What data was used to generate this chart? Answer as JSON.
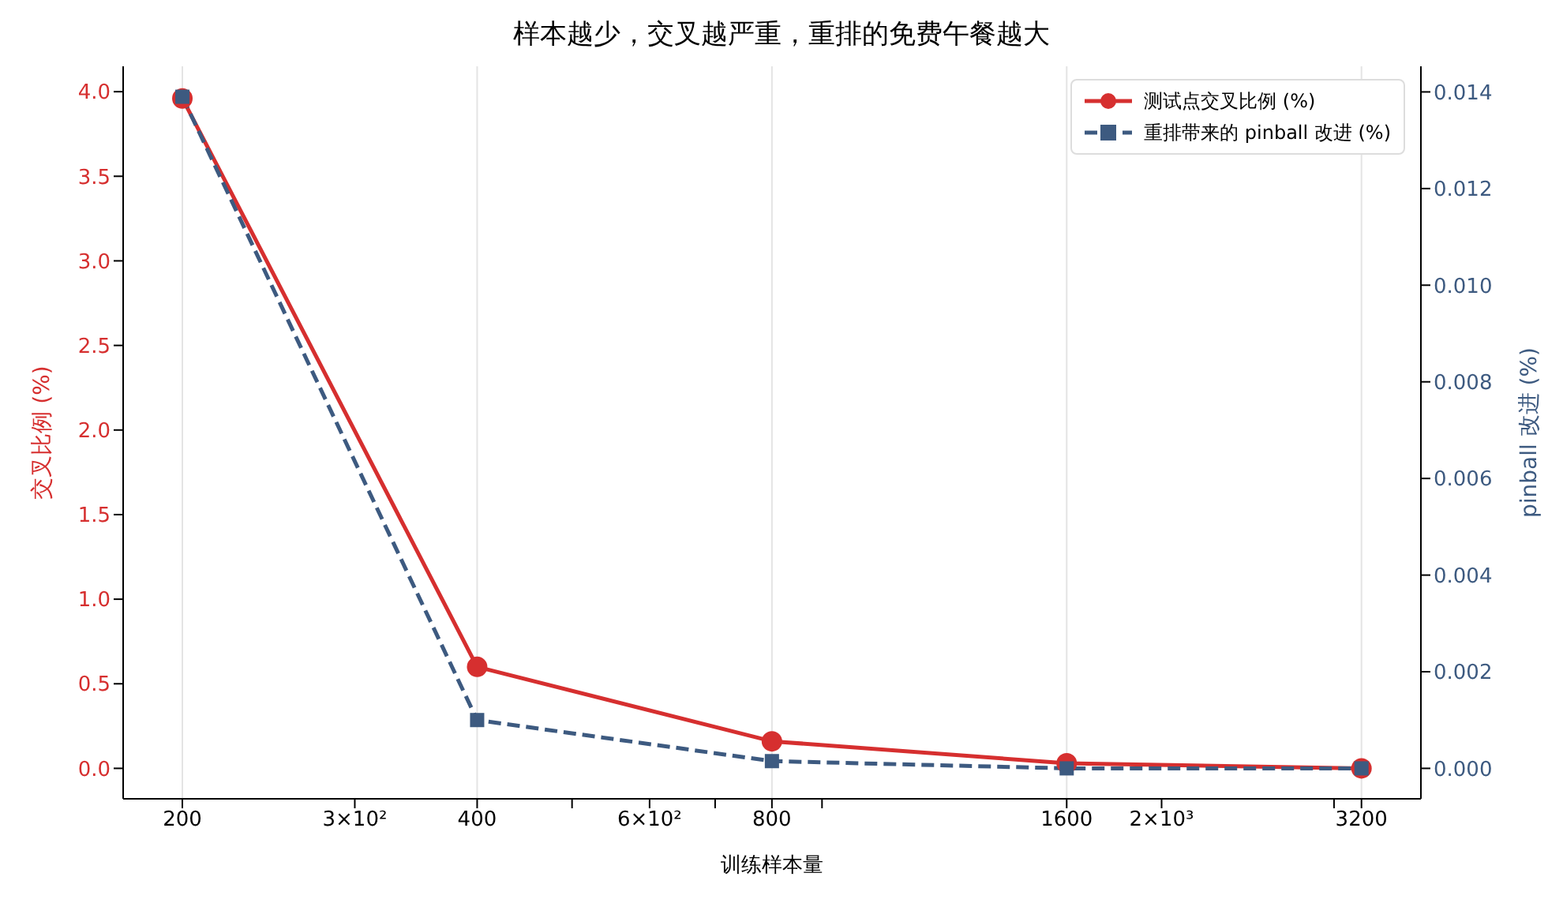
{
  "chart_data": {
    "type": "line",
    "title": "样本越少，交叉越严重，重排的免费午餐越大",
    "xlabel": "训练样本量",
    "ylabel": "交叉比例 (%)",
    "y2label": "pinball 改进 (%)",
    "x": [
      200,
      400,
      800,
      1600,
      3200
    ],
    "series": [
      {
        "name": "测试点交叉比例 (%)",
        "color": "#d62f2f",
        "values": [
          3.96,
          0.6,
          0.16,
          0.03,
          0.0
        ],
        "marker": "circle",
        "line_style": "solid"
      },
      {
        "name": "重排带来的 pinball 改进 (%)",
        "color": "#3d5a80",
        "values": [
          0.0139,
          0.001,
          0.00015,
          0.0,
          0.0
        ],
        "axis": "y2",
        "marker": "square",
        "line_style": "dashed"
      }
    ],
    "log": "x",
    "xlim": [
      174,
      3680
    ],
    "xticks": [
      200,
      {
        "value": 300,
        "label": "3×10²"
      },
      400,
      {
        "value": 500,
        "label": null
      },
      {
        "value": 600,
        "label": "6×10²"
      },
      {
        "value": 700,
        "label": null
      },
      800,
      {
        "value": 900,
        "label": null
      },
      1600,
      {
        "value": 2000,
        "label": "2×10³"
      },
      {
        "value": 3000,
        "label": null
      },
      3200
    ],
    "ylim": [
      -0.18,
      4.15
    ],
    "yticks": [
      {
        "value": 0,
        "label": "0.0"
      },
      0.5,
      {
        "value": 1,
        "label": "1.0"
      },
      1.5,
      {
        "value": 2,
        "label": "2.0"
      },
      2.5,
      {
        "value": 3,
        "label": "3.0"
      },
      3.5,
      {
        "value": 4,
        "label": "4.0"
      }
    ],
    "y2lim": [
      -0.00063,
      0.01453
    ],
    "y2ticks": [
      {
        "value": 0,
        "label": "0.000"
      },
      0.002,
      0.004,
      0.006,
      0.008,
      {
        "value": 0.01,
        "label": "0.010"
      },
      0.012,
      0.014
    ],
    "grid": true,
    "legend": "top right"
  }
}
